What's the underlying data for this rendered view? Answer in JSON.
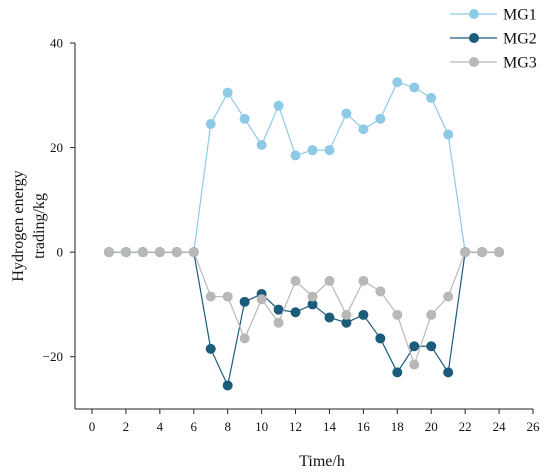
{
  "chart_data": {
    "type": "line",
    "xlabel": "Time/h",
    "ylabel": [
      "Hydrogen energy",
      "trading/kg"
    ],
    "xlim": [
      0,
      26
    ],
    "ylim": [
      -30,
      40
    ],
    "xticks": [
      0,
      2,
      4,
      6,
      8,
      10,
      12,
      14,
      16,
      18,
      20,
      22,
      24,
      26
    ],
    "yticks": [
      -20,
      0,
      20,
      40
    ],
    "ytick_labels": [
      "−20",
      "0",
      "20",
      "40"
    ],
    "grid": false,
    "legend_position": "top-right",
    "x": [
      1,
      2,
      3,
      4,
      5,
      6,
      7,
      8,
      9,
      10,
      11,
      12,
      13,
      14,
      15,
      16,
      17,
      18,
      19,
      20,
      21,
      22,
      23,
      24
    ],
    "series": [
      {
        "name": "MG1",
        "color": "#8ecae6",
        "values": [
          0,
          0,
          0,
          0,
          0,
          0,
          24.5,
          30.5,
          25.5,
          20.5,
          28,
          18.5,
          19.5,
          19.5,
          26.5,
          23.5,
          25.5,
          32.5,
          31.5,
          29.5,
          22.5,
          0,
          0,
          0
        ]
      },
      {
        "name": "MG2",
        "color": "#1b5c7a",
        "values": [
          0,
          0,
          0,
          0,
          0,
          0,
          -18.5,
          -25.5,
          -9.5,
          -8,
          -11,
          -11.5,
          -10,
          -12.5,
          -13.5,
          -12,
          -16.5,
          -23,
          -18,
          -18,
          -23,
          0,
          0,
          0
        ]
      },
      {
        "name": "MG3",
        "color": "#b8b8b8",
        "values": [
          0,
          0,
          0,
          0,
          0,
          0,
          -8.5,
          -8.5,
          -16.5,
          -9,
          -13.5,
          -5.5,
          -8.5,
          -5.5,
          -12,
          -5.5,
          -7.5,
          -12,
          -21.5,
          -12,
          -8.5,
          0,
          0,
          0
        ]
      }
    ]
  }
}
